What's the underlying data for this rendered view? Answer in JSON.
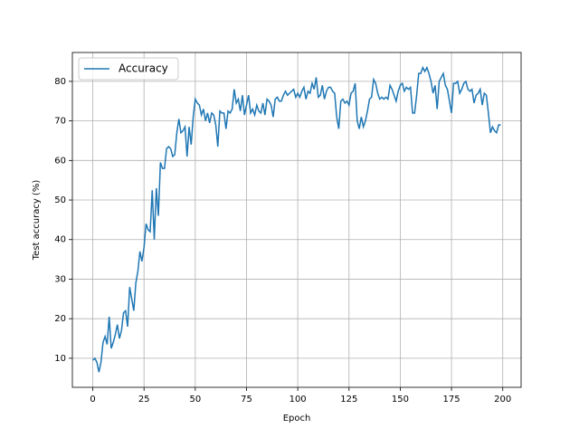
{
  "chart_data": {
    "type": "line",
    "xlabel": "Epoch",
    "ylabel": "Test accuracy (%)",
    "x": [
      0,
      1,
      2,
      3,
      4,
      5,
      6,
      7,
      8,
      9,
      10,
      11,
      12,
      13,
      14,
      15,
      16,
      17,
      18,
      19,
      20,
      21,
      22,
      23,
      24,
      25,
      26,
      27,
      28,
      29,
      30,
      31,
      32,
      33,
      34,
      35,
      36,
      37,
      38,
      39,
      40,
      41,
      42,
      43,
      44,
      45,
      46,
      47,
      48,
      49,
      50,
      51,
      52,
      53,
      54,
      55,
      56,
      57,
      58,
      59,
      60,
      61,
      62,
      63,
      64,
      65,
      66,
      67,
      68,
      69,
      70,
      71,
      72,
      73,
      74,
      75,
      76,
      77,
      78,
      79,
      80,
      81,
      82,
      83,
      84,
      85,
      86,
      87,
      88,
      89,
      90,
      91,
      92,
      93,
      94,
      95,
      96,
      97,
      98,
      99,
      100,
      101,
      102,
      103,
      104,
      105,
      106,
      107,
      108,
      109,
      110,
      111,
      112,
      113,
      114,
      115,
      116,
      117,
      118,
      119,
      120,
      121,
      122,
      123,
      124,
      125,
      126,
      127,
      128,
      129,
      130,
      131,
      132,
      133,
      134,
      135,
      136,
      137,
      138,
      139,
      140,
      141,
      142,
      143,
      144,
      145,
      146,
      147,
      148,
      149,
      150,
      151,
      152,
      153,
      154,
      155,
      156,
      157,
      158,
      159,
      160,
      161,
      162,
      163,
      164,
      165,
      166,
      167,
      168,
      169,
      170,
      171,
      172,
      173,
      174,
      175,
      176,
      177,
      178,
      179,
      180,
      181,
      182,
      183,
      184,
      185,
      186,
      187,
      188,
      189,
      190,
      191,
      192,
      193,
      194,
      195,
      196,
      197,
      198,
      199
    ],
    "series": [
      {
        "name": "Accuracy",
        "color": "#1f77b4",
        "values": [
          9.5,
          10,
          9,
          6.5,
          9,
          14,
          15.5,
          13.5,
          20.5,
          12.5,
          14,
          16,
          18.5,
          15,
          17,
          21.5,
          22,
          18,
          28,
          25,
          22,
          29,
          32,
          37,
          34.5,
          38,
          44,
          42.5,
          42,
          52.5,
          40,
          53,
          46,
          59.5,
          58,
          58,
          63,
          63.5,
          63,
          61,
          61.5,
          67,
          70.5,
          67,
          67.5,
          68.5,
          61,
          68.5,
          64,
          71,
          75.5,
          74.5,
          74,
          71.5,
          73,
          70,
          72,
          69.5,
          72,
          71.5,
          69,
          63.5,
          72.5,
          72,
          72,
          68,
          72.5,
          72,
          73,
          78,
          74.5,
          75.5,
          72.5,
          76.5,
          71.5,
          74,
          76.5,
          72,
          73,
          71.5,
          74,
          72.5,
          72,
          74.5,
          71.5,
          75.5,
          75,
          74,
          71,
          75.5,
          76,
          75,
          75,
          76.5,
          77.5,
          76.5,
          77,
          77.5,
          78,
          76,
          77,
          76,
          77.5,
          78.5,
          75.5,
          77.5,
          77,
          79.5,
          78,
          81,
          76,
          76.5,
          79,
          75.5,
          77.5,
          78.5,
          78.5,
          77.5,
          77,
          71,
          68,
          75,
          75.5,
          74.5,
          75,
          74,
          77,
          77.5,
          79.5,
          70,
          68,
          71,
          68.5,
          70,
          72.5,
          75.5,
          76,
          80.5,
          79.5,
          77,
          75.5,
          76,
          75.5,
          76,
          75.5,
          79,
          78,
          76.5,
          75,
          77.5,
          79,
          79.5,
          77.5,
          78.5,
          78,
          78.5,
          72,
          72,
          76.5,
          82,
          82,
          83.5,
          82.5,
          83.5,
          82,
          80,
          77,
          79,
          73,
          80,
          81,
          82,
          79,
          78,
          75,
          72,
          79.5,
          79.5,
          80,
          77,
          78,
          79.5,
          80,
          78,
          77.5,
          78,
          74.5,
          76.5,
          77,
          78,
          74,
          77,
          76.5,
          72,
          67,
          68.5,
          67.5,
          67,
          69,
          69
        ]
      }
    ],
    "xlim": [
      -9.95,
      208.95
    ],
    "ylim": [
      2.65,
      87.3
    ],
    "xticks": [
      0,
      25,
      50,
      75,
      100,
      125,
      150,
      175,
      200
    ],
    "yticks": [
      10,
      20,
      30,
      40,
      50,
      60,
      70,
      80
    ],
    "grid": true,
    "legend": "upper left"
  }
}
